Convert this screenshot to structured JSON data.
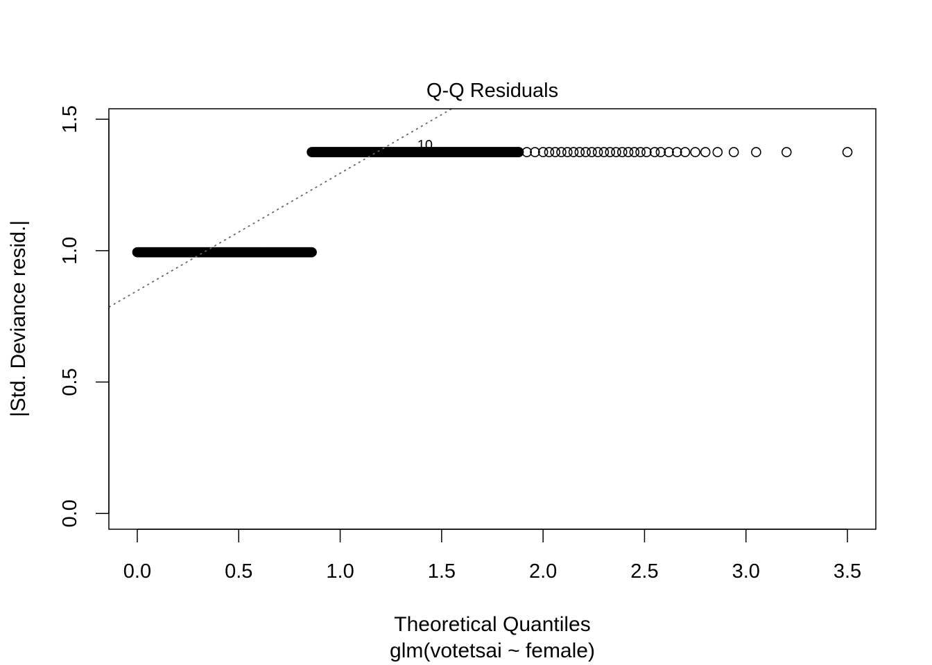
{
  "chart_data": {
    "type": "scatter",
    "title": "Q-Q Residuals",
    "xlabel": "Theoretical Quantiles",
    "subtitle": "glm(votetsai ~ female)",
    "ylabel": "|Std. Deviance resid.|",
    "xlim": [
      -0.14,
      3.64
    ],
    "ylim": [
      -0.06,
      1.54
    ],
    "x_ticks": [
      0.0,
      0.5,
      1.0,
      1.5,
      2.0,
      2.5,
      3.0,
      3.5
    ],
    "x_tick_labels": [
      "0.0",
      "0.5",
      "1.0",
      "1.5",
      "2.0",
      "2.5",
      "3.0",
      "3.5"
    ],
    "y_ticks": [
      0.0,
      0.5,
      1.0,
      1.5
    ],
    "y_tick_labels": [
      "0.0",
      "0.5",
      "1.0",
      "1.5"
    ],
    "grid": false,
    "marker": "open-circle",
    "series": [
      {
        "group": "lower",
        "y": 0.994,
        "x_range": [
          0.0,
          0.86
        ],
        "dense": true
      },
      {
        "group": "upper",
        "y": 1.375,
        "x_range": [
          0.86,
          3.5
        ],
        "sparse_tail_x": [
          1.88,
          1.92,
          1.96,
          2.0,
          2.03,
          2.06,
          2.09,
          2.12,
          2.15,
          2.18,
          2.21,
          2.24,
          2.27,
          2.3,
          2.33,
          2.36,
          2.39,
          2.42,
          2.45,
          2.48,
          2.51,
          2.55,
          2.58,
          2.62,
          2.66,
          2.7,
          2.75,
          2.8,
          2.86,
          2.94,
          3.05,
          3.2,
          3.5
        ]
      }
    ],
    "reference_line": {
      "style": "dotted",
      "color": "#666666",
      "points": [
        [
          -0.14,
          0.785
        ],
        [
          1.55,
          1.54
        ]
      ]
    },
    "annotation": {
      "text": "10",
      "x": 1.38,
      "y": 1.385
    }
  }
}
